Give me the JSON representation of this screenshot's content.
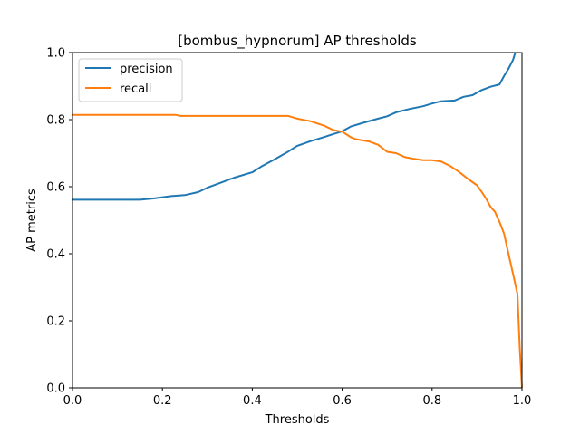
{
  "chart_data": {
    "type": "line",
    "title": "[bombus_hypnorum] AP thresholds",
    "xlabel": "Thresholds",
    "ylabel": "AP metrics",
    "xlim": [
      0.0,
      1.0
    ],
    "ylim": [
      0.0,
      1.0
    ],
    "x_ticks": [
      "0.0",
      "0.2",
      "0.4",
      "0.6",
      "0.8",
      "1.0"
    ],
    "y_ticks": [
      "0.0",
      "0.2",
      "0.4",
      "0.6",
      "0.8",
      "1.0"
    ],
    "grid": false,
    "legend_position": "upper-left",
    "series": [
      {
        "name": "precision",
        "color": "#1f77b4",
        "points": [
          [
            0.0,
            0.561
          ],
          [
            0.05,
            0.561
          ],
          [
            0.1,
            0.561
          ],
          [
            0.15,
            0.561
          ],
          [
            0.18,
            0.565
          ],
          [
            0.22,
            0.572
          ],
          [
            0.25,
            0.575
          ],
          [
            0.28,
            0.584
          ],
          [
            0.3,
            0.597
          ],
          [
            0.33,
            0.612
          ],
          [
            0.36,
            0.627
          ],
          [
            0.4,
            0.643
          ],
          [
            0.42,
            0.66
          ],
          [
            0.45,
            0.682
          ],
          [
            0.48,
            0.705
          ],
          [
            0.5,
            0.722
          ],
          [
            0.53,
            0.736
          ],
          [
            0.56,
            0.748
          ],
          [
            0.58,
            0.757
          ],
          [
            0.6,
            0.765
          ],
          [
            0.62,
            0.78
          ],
          [
            0.65,
            0.792
          ],
          [
            0.68,
            0.803
          ],
          [
            0.7,
            0.81
          ],
          [
            0.72,
            0.822
          ],
          [
            0.75,
            0.832
          ],
          [
            0.78,
            0.84
          ],
          [
            0.8,
            0.848
          ],
          [
            0.82,
            0.855
          ],
          [
            0.85,
            0.857
          ],
          [
            0.87,
            0.868
          ],
          [
            0.89,
            0.873
          ],
          [
            0.91,
            0.888
          ],
          [
            0.93,
            0.898
          ],
          [
            0.95,
            0.905
          ],
          [
            0.96,
            0.93
          ],
          [
            0.97,
            0.952
          ],
          [
            0.98,
            0.978
          ],
          [
            0.985,
            1.0
          ]
        ]
      },
      {
        "name": "recall",
        "color": "#ff7f0e",
        "points": [
          [
            0.0,
            0.814
          ],
          [
            0.1,
            0.814
          ],
          [
            0.2,
            0.814
          ],
          [
            0.23,
            0.814
          ],
          [
            0.24,
            0.811
          ],
          [
            0.3,
            0.811
          ],
          [
            0.4,
            0.811
          ],
          [
            0.48,
            0.811
          ],
          [
            0.5,
            0.803
          ],
          [
            0.53,
            0.795
          ],
          [
            0.56,
            0.782
          ],
          [
            0.58,
            0.769
          ],
          [
            0.6,
            0.764
          ],
          [
            0.62,
            0.747
          ],
          [
            0.63,
            0.742
          ],
          [
            0.66,
            0.735
          ],
          [
            0.68,
            0.725
          ],
          [
            0.7,
            0.704
          ],
          [
            0.72,
            0.7
          ],
          [
            0.74,
            0.688
          ],
          [
            0.76,
            0.683
          ],
          [
            0.78,
            0.679
          ],
          [
            0.8,
            0.679
          ],
          [
            0.82,
            0.675
          ],
          [
            0.84,
            0.662
          ],
          [
            0.86,
            0.644
          ],
          [
            0.88,
            0.623
          ],
          [
            0.9,
            0.604
          ],
          [
            0.91,
            0.585
          ],
          [
            0.92,
            0.565
          ],
          [
            0.93,
            0.54
          ],
          [
            0.94,
            0.525
          ],
          [
            0.95,
            0.495
          ],
          [
            0.96,
            0.46
          ],
          [
            0.97,
            0.4
          ],
          [
            0.98,
            0.34
          ],
          [
            0.99,
            0.28
          ],
          [
            0.995,
            0.12
          ],
          [
            1.0,
            0.0
          ]
        ]
      }
    ]
  }
}
